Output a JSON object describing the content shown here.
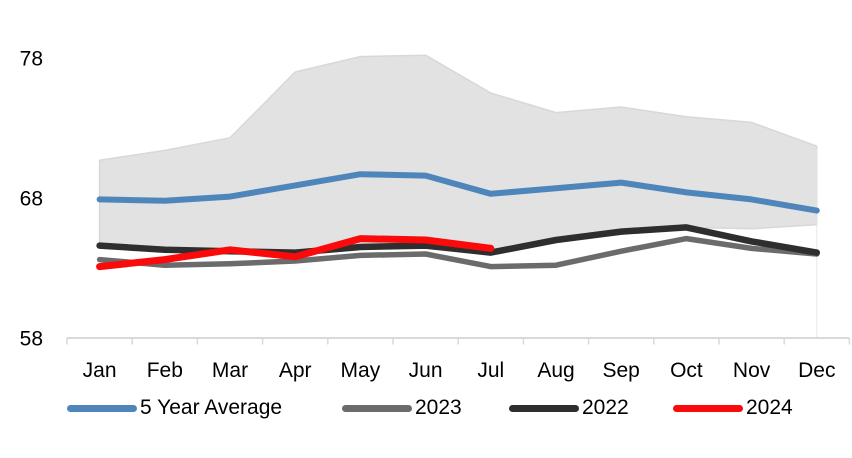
{
  "chart_data": {
    "type": "line",
    "title": "",
    "xlabel": "",
    "ylabel": "",
    "categories": [
      "Jan",
      "Feb",
      "Mar",
      "Apr",
      "May",
      "Jun",
      "Jul",
      "Aug",
      "Sep",
      "Oct",
      "Nov",
      "Dec"
    ],
    "yticks": [
      58,
      68,
      78
    ],
    "ylim": [
      58,
      78.5
    ],
    "grid": "off",
    "legend_position": "bottom",
    "axis_color": "#d9d9d9",
    "text_color": "#000000",
    "band": {
      "name": "5-year range",
      "fill": "#e2e2e2",
      "edge": "#d8d8d8",
      "upper": [
        70.7,
        71.4,
        72.3,
        77.0,
        78.1,
        78.2,
        75.5,
        74.1,
        74.5,
        73.8,
        73.4,
        71.7
      ],
      "lower": [
        64.5,
        64.3,
        64.2,
        64.0,
        64.6,
        64.7,
        64.3,
        65.0,
        65.6,
        65.9,
        65.8,
        66.1
      ]
    },
    "series": [
      {
        "name": "5 Year Average",
        "color": "#4e86bc",
        "stroke_width": 6,
        "values": [
          67.9,
          67.8,
          68.1,
          68.9,
          69.7,
          69.6,
          68.3,
          68.7,
          69.1,
          68.4,
          67.9,
          67.1
        ]
      },
      {
        "name": "2023",
        "color": "#6b6b6b",
        "stroke_width": 5.5,
        "values": [
          63.6,
          63.2,
          63.3,
          63.5,
          63.9,
          64.0,
          63.1,
          63.2,
          64.2,
          65.1,
          64.4,
          64.0
        ]
      },
      {
        "name": "2022",
        "color": "#2e2e2e",
        "stroke_width": 6.5,
        "values": [
          64.6,
          64.3,
          64.2,
          64.1,
          64.5,
          64.6,
          64.1,
          65.0,
          65.6,
          65.9,
          64.9,
          64.1
        ]
      },
      {
        "name": "2024",
        "color": "#fa0a0a",
        "stroke_width": 7,
        "values": [
          63.1,
          63.6,
          64.3,
          63.8,
          65.1,
          65.0,
          64.4
        ]
      }
    ]
  }
}
